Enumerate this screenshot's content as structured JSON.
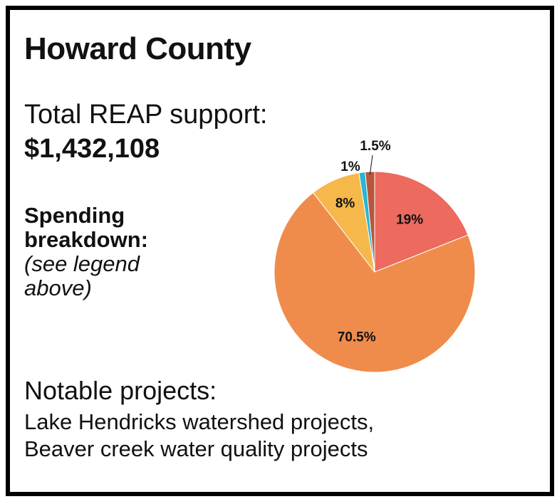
{
  "header": {
    "title": "Howard County"
  },
  "support": {
    "label": "Total REAP support:",
    "value": "$1,432,108"
  },
  "breakdown": {
    "label_line1": "Spending",
    "label_line2": "breakdown:",
    "note_line1": "(see legend",
    "note_line2": "above)"
  },
  "projects": {
    "label": "Notable projects:",
    "line1": "Lake Hendricks watershed projects,",
    "line2": "Beaver creek water quality projects"
  },
  "chart_data": {
    "type": "pie",
    "slices": [
      {
        "value": 19,
        "label": "19%",
        "color": "#ec6a5e"
      },
      {
        "value": 70.5,
        "label": "70.5%",
        "color": "#ef8c4b"
      },
      {
        "value": 8,
        "label": "8%",
        "color": "#f6b84b"
      },
      {
        "value": 1,
        "label": "1%",
        "color": "#29b6d1"
      },
      {
        "value": 1.5,
        "label": "1.5%",
        "color": "#b8553a"
      }
    ]
  }
}
